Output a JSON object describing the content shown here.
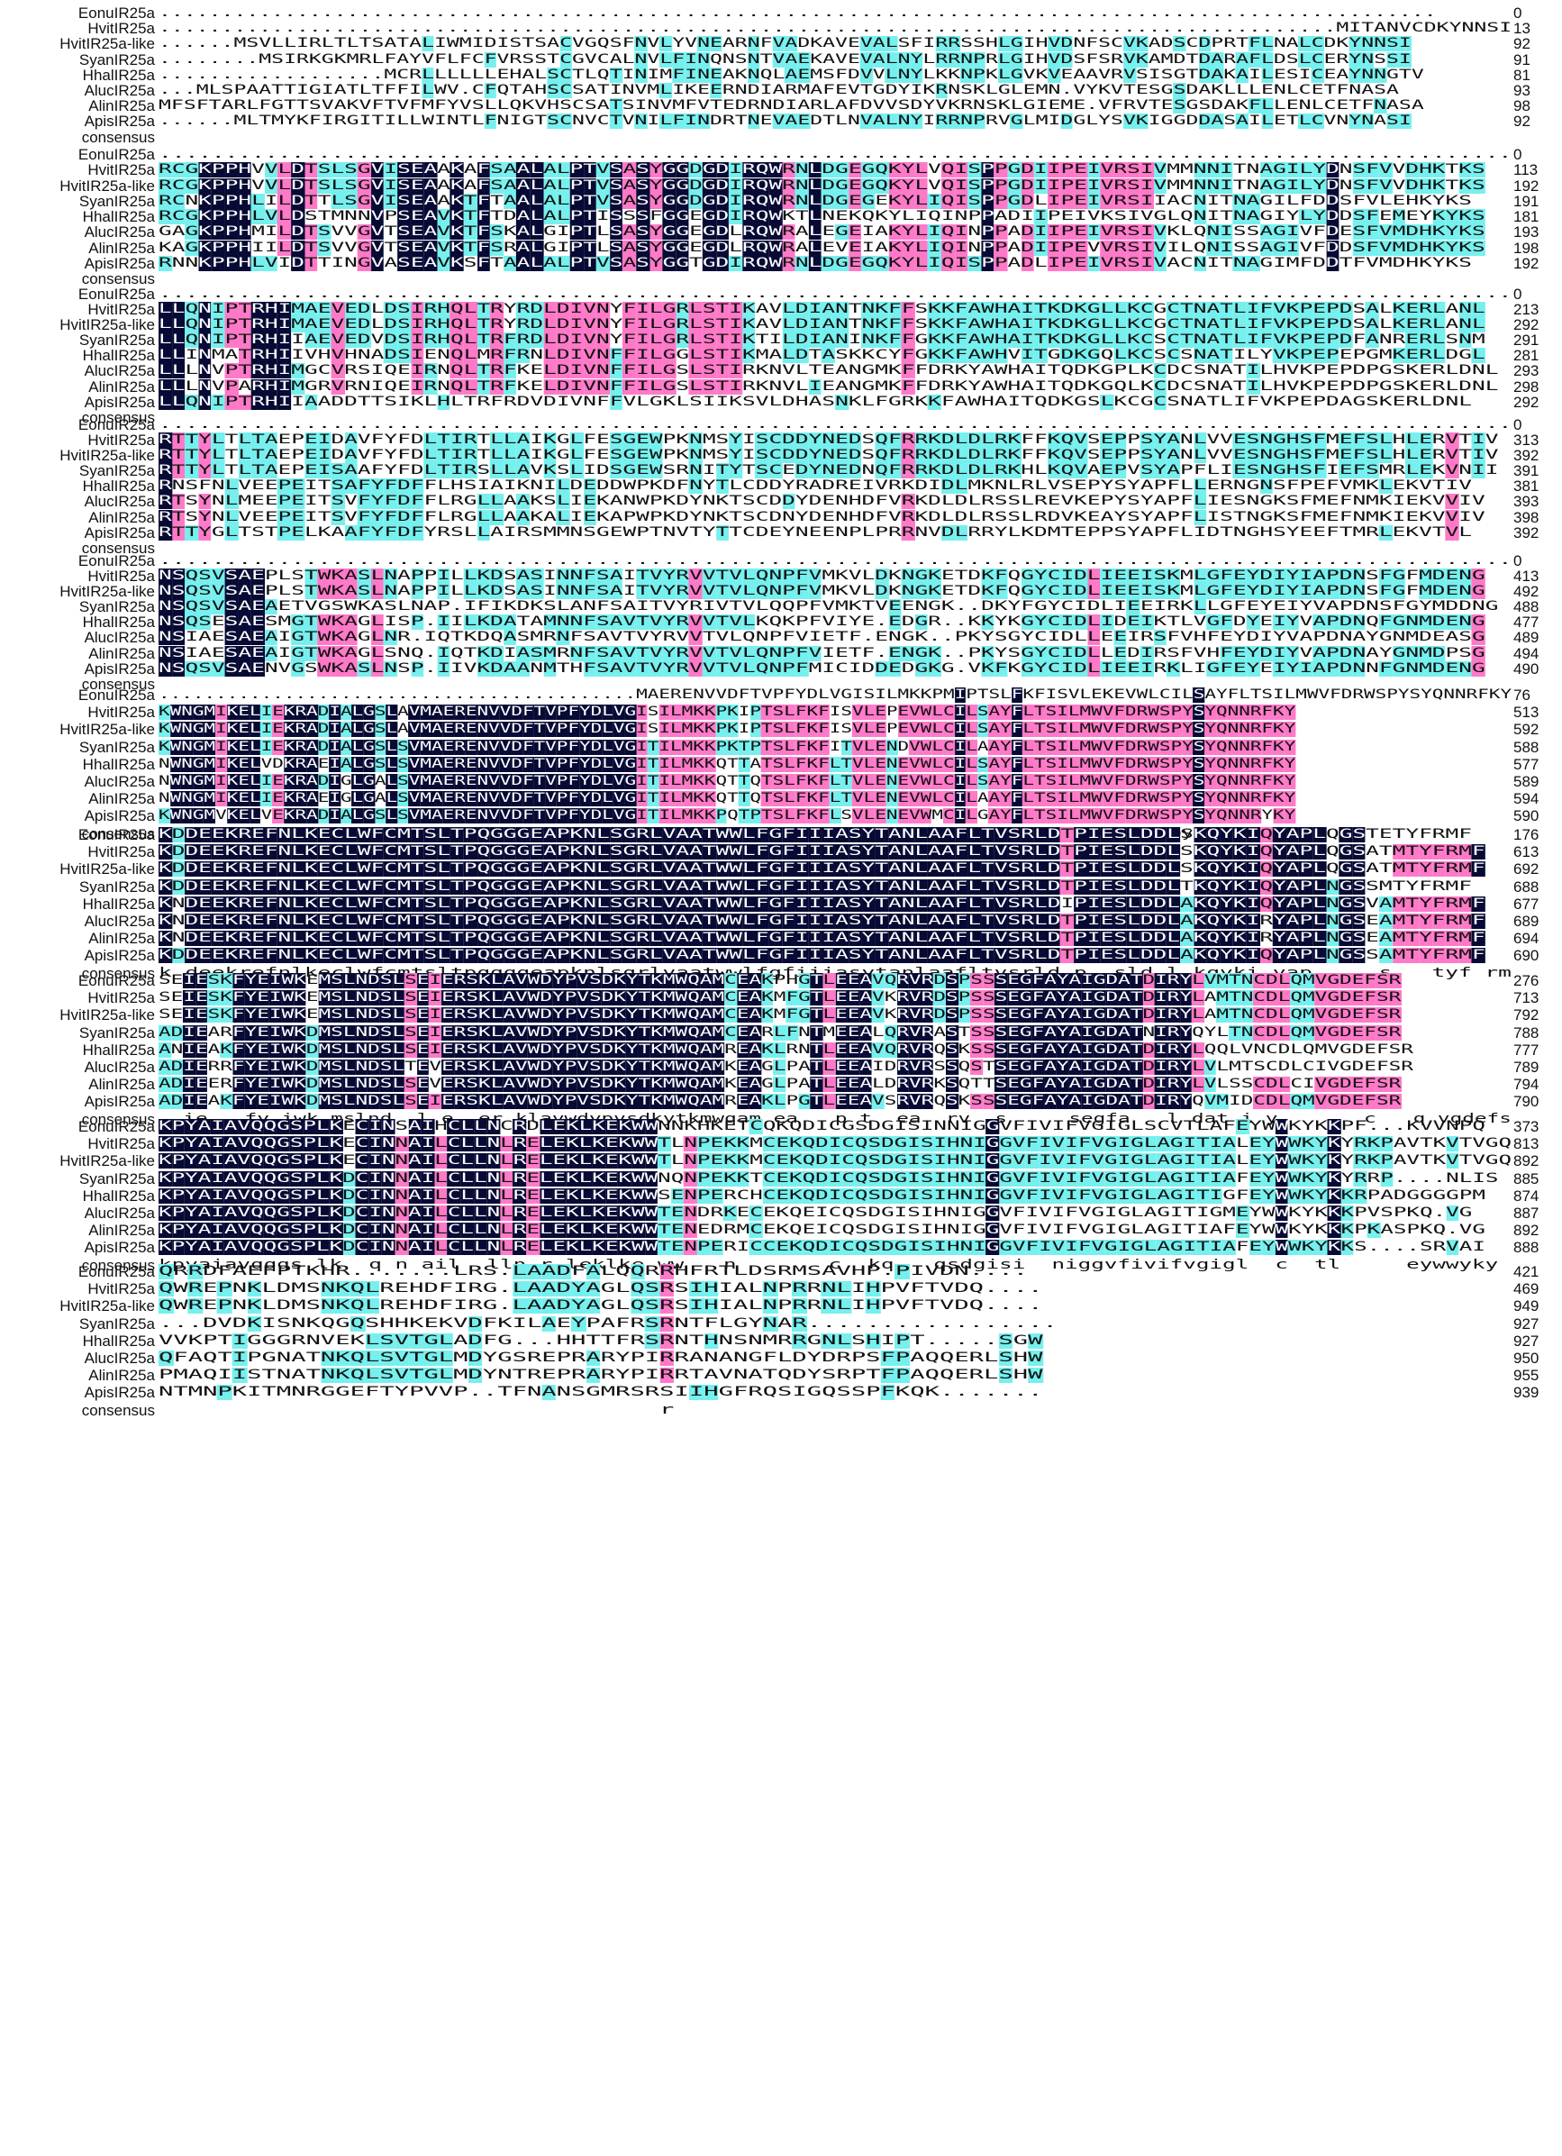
{
  "figure_title": "",
  "colors": {
    "none": "#ffffff",
    "low_similarity_cyan": "#76f0ee",
    "medium_similarity_pink": "#ff79c8",
    "identical_black": "#070a34"
  },
  "blocks": [
    {
      "rows": [
        {
          "name": "EonuIR25a",
          "seq": "......................................................................................................",
          "end": "0"
        },
        {
          "name": "HvitIR25a",
          "seq": "..............................................................................................MITANVCDKYNNSI",
          "end": "13"
        },
        {
          "name": "HvitIR25a-like",
          "seq": "......MSVLLIRLTLTSATALIWMIDISTSACVGQSFNVLYVNEARNFVADKAVEVALSFIRRSSHLGIHVDNFSCVKADSCDPRTFLNALCDKYNNSI",
          "end": "92"
        },
        {
          "name": "SyanIR25a",
          "seq": "........MSIRKGKMRLFAYVFLFCFVRSSTCGVCALNVLFINQNSNTVAEKAVEVALNYLRRNPRLGIHVDSFSRVKAMDTDARAFLDSLCERYNSSI",
          "end": "91"
        },
        {
          "name": "HhalIR25a",
          "seq": "..................MCRLLLLLLEHALSCTLQTINIMFINEAKNQLAEMSFDVVLNYLKKNPKLGVKVEAAVRVSISGTDAKAILESICEAYNNGTV",
          "end": "81"
        },
        {
          "name": "AlucIR25a",
          "seq": "...MLSPAATTIGIATLTFFILWV.CFQTAHSCSATINVMLIKEERNDIARMAFEVTGDYIKRNSKLGLEMN.VYKVTESGSDAKLLLENLCETFNASA",
          "end": "93"
        },
        {
          "name": "AlinIR25a",
          "seq": "MFSFTARLFGTTSVAKVFTVFMFYVSLLQKVHSCSATSINVMFVTEDRNDIARLAFDVVSDYVKRNSKLGIEME.VFRVTESGSDAKFLLENLCETFNASA",
          "end": "98"
        },
        {
          "name": "ApisIR25a",
          "seq": "......MLTMYKFIRGITILLWINTLFNIGTSCNVCTVNILFINDRTNEVAEDTLNVALNYIRRNPRVGLMIDGLYSVKIGGDDASAILETLCVNYNASI",
          "end": "92"
        },
        {
          "name": "consensus",
          "seq": "",
          "end": ""
        }
      ]
    },
    {
      "rows": [
        {
          "name": "EonuIR25a",
          "seq": "......................................................................................................",
          "end": "0"
        },
        {
          "name": "HvitIR25a",
          "seq": "RCGKPPHVVLDTSLSGVISEAAKAFSAALALPTVSASYGGDGDIRQWRNLDGEGQKYLVQISPPGDIIPEIVRSIVMMNNITNAGILYDNSFVVDHKTKS",
          "end": "113"
        },
        {
          "name": "HvitIR25a-like",
          "seq": "RCGKPPHVVLDTSLSGVISEAAKAFSAALALPTVSASYGGDGDIRQWRNLDGEGQKYLVQISPPGDIIPEIVRSIVMMNNITNAGILYDNSFVVDHKTKS",
          "end": "192"
        },
        {
          "name": "SyanIR25a",
          "seq": "RCNKPPHLILDTTLSGVISEAAKTFTAALALPTVSASYGGDGDIRQWRNLDGEGEKYLIQISPPGDLIPEIVRSIIACNITNAGILFDDSFVLEHKYKS",
          "end": "191"
        },
        {
          "name": "HhalIR25a",
          "seq": "RCGKPPHLVLDSTMNNVPSEAVKTFTDALALPTISSSFGGEGDIRQWKTLNEKQKYLIQINPPADIIPEIVKSIVGLQNITNAGIYLYDDSFEMEYKYKS",
          "end": "181"
        },
        {
          "name": "AlucIR25a",
          "seq": "GAGKPPHMILDTSVVGVTSEAVKTFSKALGIPTLSASYGGEGDLRQWRALEGEIAKYLIQINPPADIIPEIVRSIVKLQNISSAGIVFDESFVMDHKYKS",
          "end": "193"
        },
        {
          "name": "AlinIR25a",
          "seq": "KAGKPPHIILDTSVVGVTSEAVKTFSRALGIPTLSASYGGEGDLRQWRALEVEIAKYLIQINPPADIIPEVVRSIVILQNISSAGIVFDDSFVMDHKYKS",
          "end": "198"
        },
        {
          "name": "ApisIR25a",
          "seq": "RNNKPPHLVIDTTINGVASEAVKSFTAALALPTVSASYGGTGDIRQWRNLDGEGQKYLIQISPPADLIPEIVRSIVACNITNAGIMFDDTFVMDHKYKS",
          "end": "192"
        },
        {
          "name": "consensus",
          "seq": "",
          "end": ""
        }
      ]
    },
    {
      "rows": [
        {
          "name": "EonuIR25a",
          "seq": "......................................................................................................",
          "end": "0"
        },
        {
          "name": "HvitIR25a",
          "seq": "LLQNIPTRHIMAEVEDLDSIRHQLTRYRDLDIVNYFILGRLSTIKAVLDIANTNKFFSKKFAWHAITKDKGLLKCGCTNATLIFVKPEPDSALKERLANL",
          "end": "213"
        },
        {
          "name": "HvitIR25a-like",
          "seq": "LLQNIPTRHIMAEVEDLDSIRHQLTRYRDLDIVNYFILGRLSTIKAVLDIANTNKFFSKKFAWHAITKDKGLLKCGCTNATLIFVKPEPDSALKERLANL",
          "end": "292"
        },
        {
          "name": "SyanIR25a",
          "seq": "LLQNIPTRHIIAEVEDVDSIRHQLTRFRDLDIVNYFILGRLSTIKTILDIANINKFFGKKFAWHAITKDKGLLKCSCTNATLIFVKPEPDFANRERLSNM",
          "end": "291"
        },
        {
          "name": "HhalIR25a",
          "seq": "LLINMATRHIIVHVHNADSIENQLMRFRNLDIVNFFILGGLSTIKMALDTASKKCYFGKKFAWHVITGDKGQLKCSCSNATILYVKPEPEPGMKERLDGL",
          "end": "281"
        },
        {
          "name": "AlucIR25a",
          "seq": "LLLNVPTRHIMGCVRSIQEIRNQLTRFKELDIVNFFILGSLSTIRKNVLTEANGMKFFDRKYAWHAITQDKGPLKCDCSNATILHVKPEPDPGSKERLDNL",
          "end": "293"
        },
        {
          "name": "AlinIR25a",
          "seq": "LLLNVPARHIMGRVRNIQEIRNQLTRFKELDIVNFFILGSLSTIRKNVLIEANGMKFFDRKYAWHAITQDKGQLKCDCSNATILHVKPEPDPGSKERLDNL",
          "end": "298"
        },
        {
          "name": "ApisIR25a",
          "seq": "LLQNIPTRHIIAADDTTSIKLHLTRFRDVDIVNFFVLGKLSIIKSVLDHASNKLFGRKKFAWHAITQDKGSLKCGCSNATLIFVKPEPDAGSKERLDNL",
          "end": "292"
        },
        {
          "name": "consensus",
          "seq": "",
          "end": ""
        }
      ]
    },
    {
      "rows": [
        {
          "name": "EonuIR25a",
          "seq": "......................................................................................................",
          "end": "0"
        },
        {
          "name": "HvitIR25a",
          "seq": "RTTYLTLTAEPEIDAVFYFDLTIRTLLAIKGLFESGEWPKNMSYISCDDYNEDSQFRRKDLDLRKFFKQVSEPPSYANLVVESNGHSFMEFSLHLERVTIV",
          "end": "313"
        },
        {
          "name": "HvitIR25a-like",
          "seq": "RTTYLTLTAEPEIDAVFYFDLTIRTLLAIKGLFESGEWPKNMSYISCDDYNEDSQFRRKDLDLRKFFKQVSEPPSYANLVVESNGHSFMEFSLHLERVTIV",
          "end": "392"
        },
        {
          "name": "SyanIR25a",
          "seq": "RTTYLTLTAEPEISAAFYFDLTIRSLLAVKSLIDSGEWSRNITYTSCEDYNEDNQFRRKDLDLRKHLKQVAEPVSYAPFLIESNGHSFIEFSMRLEKVNII",
          "end": "391"
        },
        {
          "name": "HhalIR25a",
          "seq": "RNSFNLVEEPEITSAFYFDFFLHSIAIKNILDEDDWPKDFNYTLCDDYRADREIVRKDIDLMKNLRLVSEPYSYAPFLLERNGNSFPEFVMKLEKVTIV",
          "end": "381"
        },
        {
          "name": "AlucIR25a",
          "seq": "RTSYNLMEEPEITSVFYFDFFLRGLLAAKSLIEKANWPKDYNKTSCDDYDENHDFVRKDLDLRSSLREVKEPYSYAPFLIESNGKSFMEFNMKIEKVVIV",
          "end": "393"
        },
        {
          "name": "AlinIR25a",
          "seq": "RTSYNLVEEPEITSVFYFDFFLRGLLAAKALIEKAPWPKDYNKTSCDNYDENHDFVRKDLDLRSSLRDVKEAYSYAPFLISTNGKSFMEFNMKIEKVVIV",
          "end": "398"
        },
        {
          "name": "ApisIR25a",
          "seq": "RTTYGLTSTPELKAAFYFDFYRSLLAIRSMMNSGEWPTNVTYTTCDEYNEENPLPRRNVDLRRYLKDMTEPPSYAPFLIDTNGHSYEEFTMRLEKVTVL",
          "end": "392"
        },
        {
          "name": "consensus",
          "seq": "",
          "end": ""
        }
      ]
    },
    {
      "rows": [
        {
          "name": "EonuIR25a",
          "seq": "......................................................................................................",
          "end": "0"
        },
        {
          "name": "HvitIR25a",
          "seq": "NSQSVSAEPLSTWKASLNAPPILLKDSASINNFSAITVYRVVTVLQNPFVMKVLDKNGKETDKFQGYCIDLIEEISKMLGFEYDIYIAPDNSFGFMDENG",
          "end": "413"
        },
        {
          "name": "HvitIR25a-like",
          "seq": "NSQSVSAEPLSTWKASLNAPPILLKDSASINNFSAITVYRVVTVLQNPFVMKVLDKNGKETDKFQGYCIDLIEEISKMLGFEYDIYIAPDNSFGFMDENG",
          "end": "492"
        },
        {
          "name": "SyanIR25a",
          "seq": "NSQSVSAEAETVGSWKASLNAP.IFIKDKSLANFSAITVYRIVTVLQQPFVMKTVEENGK..DKYFGYCIDLIEEIRKLLGFEYEIYVAPDNSFGYMDDNG",
          "end": "488"
        },
        {
          "name": "HhalIR25a",
          "seq": "NSQSESAESMGTWKAGLISP.IILKDATAMNNFSAVTVYRVVTVLKQKPFVIYE.EDGR..KKYKGYCIDLIDEIKTLVGFDYEIYVAPDNQFGNMDENG",
          "end": "477"
        },
        {
          "name": "AlucIR25a",
          "seq": "NSIAESAEAIGTWKAGLNR.IQTKDQASMRNFSAVTVYRVVTVLQNPFVIETF.ENGK..PKYSGYCIDLLEEIRSFVHFEYDIYVAPDNAYGNMDEASG",
          "end": "489"
        },
        {
          "name": "AlinIR25a",
          "seq": "NSIAESAEAIGTWKAGLSNQ.IQTKDIASMRNFSAVTVYRVVTVLQNPFVIETF.ENGK..PKYSGYCIDLLEDIRSFVHFEYDIYVAPDNAYGNMDPSG",
          "end": "494"
        },
        {
          "name": "ApisIR25a",
          "seq": "NSQSVSAENVGSWKASLNSP.IIVKDAANMTHFSAVTVYRVVTVLQNPFMICIDDEDGKG.VKFKGYCIDLIEEIRKLIGFEYEIYIAPDNNFGNMDENG",
          "end": "490"
        },
        {
          "name": "consensus",
          "seq": "",
          "end": ""
        }
      ]
    },
    {
      "rows": [
        {
          "name": "EonuIR25a",
          "seq": "..........................................MAERENVVDFTVPFYDLVGISILMKKPMIPTSLFKFISVLEKEVWLCILSAYFLTSILMWVFDRWSPYSYQNNRFKY",
          "end": "76"
        },
        {
          "name": "HvitIR25a",
          "seq": "KWNGMIKELIEKRADIALGSLAVMAERENVVDFTVPFYDLVGISILMKKPKIPTSLFKFISVLEPEVWLCILSAYFLTSILMWVFDRWSPYSYQNNRFKY",
          "end": "513"
        },
        {
          "name": "HvitIR25a-like",
          "seq": "KWNGMIKELIEKRADIALGSLAVMAERENVVDFTVPFYDLVGISILMKKPKIPTSLFKFISVLEPEVWLCILSAYFLTSILMWVFDRWSPYSYQNNRFKY",
          "end": "592"
        },
        {
          "name": "SyanIR25a",
          "seq": "KWNGMIKELIEKRADIALGSLSVMAERENVVDFTVPFYDLVGITILMKKPKTPTSLFKFITVLENDVWLCILAAYFLTSILMWVFDRWSPYSYQNNRFKY",
          "end": "588"
        },
        {
          "name": "HhalIR25a",
          "seq": "NWNGMIKELVDKRAEIALGSLSVMAERENVVDFTVPFYDLVGITILMKKQTTATSLFKFLTVLENEVWLCILSAYFLTSILMWVFDRWSPYSYQNNRFKY",
          "end": "577"
        },
        {
          "name": "AlucIR25a",
          "seq": "NWNGMIKELIEKRADIGLGALSVMAERENVVDFTVPFYDLVGITILMKKQTTQTSLFKFLTVLENEVWLCILSAYFLTSILMWVFDRWSPYSYQNNRFKY",
          "end": "589"
        },
        {
          "name": "AlinIR25a",
          "seq": "NWNGMIKELIEKRAEIGLGALSVMAERENVVDFTVPFYDLVGITILMKKQTTQTSLFKFLTVLENEVWLCILAAYFLTSILMWVFDRWSPYSYQNNRFKY",
          "end": "594"
        },
        {
          "name": "ApisIR25a",
          "seq": "KWNGMVKELVEKRADIALGSLSVMAERENVVDFTVPFYDLVGITILMKKPQTPTSLFKFLSVLENEVWMCILGAYFLTSILMWVFDRWSPYSYQNNRYKY",
          "end": "590"
        },
        {
          "name": "consensus",
          "seq": "                       maere v dftvp ydlvgi i mkk    tslfkfl vle  vw cil  yf ts lmwvfdrwspysyqnnr ky",
          "end": ""
        }
      ]
    },
    {
      "rows": [
        {
          "name": "EonuIR25a",
          "seq": "KDDEEKREFNLKECLWFCMTSLTPQGGGEAPKNLSGRLVAATWWLFGFIIIASYTANLAAFLTVSRLDTPIESLDDLSKQYKIQYAPLQGSTETYFRMF",
          "end": "176"
        },
        {
          "name": "HvitIR25a",
          "seq": "KDDEEKREFNLKECLWFCMTSLTPQGGGEAPKNLSGRLVAATWWLFGFIIIASYTANLAAFLTVSRLDTPIESLDDLSKQYKIQYAPLQGSATMTYFRMF",
          "end": "613"
        },
        {
          "name": "HvitIR25a-like",
          "seq": "KDDEEKREFNLKECLWFCMTSLTPQGGGEAPKNLSGRLVAATWWLFGFIIIASYTANLAAFLTVSRLDTPIESLDDLSKQYKIQYAPLQGSATMTYFRMF",
          "end": "692"
        },
        {
          "name": "SyanIR25a",
          "seq": "KDDEEKREFNLKECLWFCMTSLTPQGGGEAPKNLSGRLVAATWWLFGFIIIASYTANLAAFLTVSRLDTPIESLDDLTKQYKIQYAPLNGSSMTYFRMF",
          "end": "688"
        },
        {
          "name": "HhalIR25a",
          "seq": "KNDEEKREFNLKECLWFCMTSLTPQGGGEAPKNLSGRLVAATWWLFGFIIIASYTANLAAFLTVSRLDIPIESLDDLAKQYKIQYAPLNGSVAMTYFRMF",
          "end": "677"
        },
        {
          "name": "AlucIR25a",
          "seq": "KNDEEKREFNLKECLWFCMTSLTPQGGGEAPKNLSGRLVAATWWLFGFIIIASYTANLAAFLTVSRLDTPIESLDDLAKQYKIRYAPLNGSEAMTYFRMF",
          "end": "689"
        },
        {
          "name": "AlinIR25a",
          "seq": "KNDEEKREFNLKECLWFCMTSLTPQGGGEAPKNLSGRLVAATWWLFGFIIIASYTANLAAFLTVSRLDTPIESLDDLAKQYKIRYAPLNGSEAMTYFRMF",
          "end": "694"
        },
        {
          "name": "ApisIR25a",
          "seq": "KDDEEKREFNLKECLWFCMTSLTPQGGGEAPKNLSGRLVAATWWLFGFIIIASYTANLAAFLTVSRLDTPIESLDDLAKQYKIQYAPLNGSSAMTYFRMF",
          "end": "690"
        },
        {
          "name": "consensus",
          "seq": "k deekrefnlkeclwfcmtsltpqgggeapknlsgrlvaatwwlfgfiiiasytanlaafltvsrld p  sld l kqyki yap     s   tyf rm",
          "end": ""
        }
      ]
    },
    {
      "rows": [
        {
          "name": "EonuIR25a",
          "seq": "SEIESKFYEIWKEMSLNDSLSEIERSKLAVWDYPVSDKYTKMWQAMCEAKPHGTLEEAVQRVRDSPSSSEGFAYAIGDATDIRYLVMTNCDLQMVGDEFSR",
          "end": "276"
        },
        {
          "name": "HvitIR25a",
          "seq": "SEIESKFYEIWKEMSLNDSLSEIERSKLAVWDYPVSDKYTKMWQAMCEAKMFGTLEEAVKRVRDSPSSSEGFAYAIGDATDIRYLAMTNCDLQMVGDEFSR",
          "end": "713"
        },
        {
          "name": "HvitIR25a-like",
          "seq": "SEIESKFYEIWKEMSLNDSLSEIERSKLAVWDYPVSDKYTKMWQAMCEAKMFGTLEEAVKRVRDSPSSSEGFAYAIGDATDIRYLAMTNCDLQMVGDEFSR",
          "end": "792"
        },
        {
          "name": "SyanIR25a",
          "seq": "ADIEARFYEIWKDMSLNDSLSEIERSKLAVWDYPVSDKYTKMWQAMCEARLFNTMEEALQRVRASTSSSEGFAYAIGDATNIRYQYLTNCDLQMVGDEFSR",
          "end": "788"
        },
        {
          "name": "HhalIR25a",
          "seq": "ANIEAKFYEIWKDMSLNDSLSEIERSKLAVWDYPVSDKYTKMWQAMREAKLRNTLEEAVQRVRQSKSSSEGFAYAIGDATDIRYLQQLVNCDLQMVGDEFSR",
          "end": "777"
        },
        {
          "name": "AlucIR25a",
          "seq": "ADIERRFYEIWKDMSLNDSLTEVERSKLAVWDYPVSDKYTKMWQAMKEAGLPATLEEAIDRVRSSQSTSEGFAYAIGDATDIRYLVLMTSCDLCIVGDEFSR",
          "end": "789"
        },
        {
          "name": "AlinIR25a",
          "seq": "ADIEERFYEIWKDMSLNDSLSEVERSKLAVWDYPVSDKYTKMWQAMKEAGLPATLEEALDRVRKSQTTSEGFAYAIGDATDIRYLVLSSCDLCIVGDEFSR",
          "end": "794"
        },
        {
          "name": "ApisIR25a",
          "seq": "ADIEAKFYEIWKDMSLNDSLSEIERSKLAVWDYPVSDKYTKMWQAMREAKLPGTLEEAVSRVRQSKSSSEGFAYAIGDATDIRYQVMIDCDLQMVGDEFSR",
          "end": "790"
        },
        {
          "name": "consensus",
          "seq": "  ie   fy iwk mslnd  l e  er klavwdypvsdkytkmwqam ea   p t  ea  rv  s     segfa   l dat i y       c   q vgdefs",
          "end": ""
        }
      ]
    },
    {
      "rows": [
        {
          "name": "EonuIR25a",
          "seq": "KPYAIAVQQGSPLKECINSAIHCLLNCRDLEKLKEKWWNNKHKETCQKQDICGSDGISINNIGGVFIVIFVGIGLSCVTLAFEYWWKYKKPF...KVVNPQ",
          "end": "373"
        },
        {
          "name": "HvitIR25a",
          "seq": "KPYAIAVQQGSPLKECINNAILCLLNLRELEKLKEKWWTLNPEKKMCEKQDICQSDGISIHNIGGVFIVIFVGIGLAGITIALEYWWKYKYRKPAVTKVTVGQ",
          "end": "813"
        },
        {
          "name": "HvitIR25a-like",
          "seq": "KPYAIAVQQGSPLKECINNAILCLLNLRELEKLKEKWWTLNPEKKMCEKQDICQSDGISIHNIGGVFIVIFVGIGLAGITIALEYWWKYKYRKPAVTKVTVGQ",
          "end": "892"
        },
        {
          "name": "SyanIR25a",
          "seq": "KPYAIAVQQGSPLKDCINNAILCLLNLRELEKLKEKWWNQNPEKKTCEKQDICQSDGISIHNIGGVFIVIFVGIGLAGITIAFEYWWKYKYRRP....NLIS",
          "end": "885"
        },
        {
          "name": "HhalIR25a",
          "seq": "KPYAIAVQQGSPLKDCINNAILCLLNLRELEKLKEKWWSENPERCHCEKQDICQSDGISIHNIGGVFIVIFVGIGLAGITIGFEYWWKYKKRPADGGGGPM",
          "end": "874"
        },
        {
          "name": "AlucIR25a",
          "seq": "KPYAIAVQQGSPLKDCINNAILCLLNLRELEKLKEKWWTENDRKECEKQEICQSDGISIHNIGGVFIVIFVGIGLAGITIGMEYWWKYKKKPVSPKQ.VG",
          "end": "887"
        },
        {
          "name": "AlinIR25a",
          "seq": "KPYAIAVQQGSPLKDCINNAILCLLNLRELEKLKEKWWTENEDRMCEKQEICQSDGISIHNIGGVFIVIFVGIGLAGITIAFEYWWKYKKKPKASPKQ.VG",
          "end": "892"
        },
        {
          "name": "ApisIR25a",
          "seq": "KPYAIAVQQGSPLKDCINNAILCLLNLRELEKLKEKWWTENPERICCEKQDICQSDGISIHNIGGVFIVIFVGIGLAGITIAFEYWWKYKKS....SRVAI",
          "end": "888"
        },
        {
          "name": "consensus",
          "seq": "kpyaiavqqgs lk  q n ail  lln r leklke ww   n       c  kq   qsdgisi  niggvfivifvgigl  c  tl     eywwyky",
          "end": ""
        }
      ]
    },
    {
      "rows": [
        {
          "name": "EonuIR25a",
          "seq": "QRRDFAEFPTKHR.......LRS.LAADFALQQRRHFRTLDSRMSAVHP.PIVDN....",
          "end": "421"
        },
        {
          "name": "HvitIR25a",
          "seq": "QWREPNKLDMSNKQLREHDFIRG.LAADYAGLQSRSIHIALNPRRNLIHPVFTVDQ....",
          "end": "469"
        },
        {
          "name": "HvitIR25a-like",
          "seq": "QWREPNKLDMSNKQLREHDFIRG.LAADYAGLQSRSIHIALNPRRNLIHPVFTVDQ....",
          "end": "949"
        },
        {
          "name": "SyanIR25a",
          "seq": "...DVDKISNKQGQSHHKEKVDFKILAEYPAFRSRNTFLGYNAR.................",
          "end": "927"
        },
        {
          "name": "HhalIR25a",
          "seq": "VVKPTIGGGRNVEKLSVTGLADFG...HHTTFRSRNTHNSNMRRGNLSHIPT.....SGW",
          "end": "927"
        },
        {
          "name": "AlucIR25a",
          "seq": "QFAQTIPGNATNKQLSVTGLMDYGSREPRARYPIRRANANGFLDYDRPSFPAQQERLSHW",
          "end": "950"
        },
        {
          "name": "AlinIR25a",
          "seq": "PMAQIISTNATNKQLSVTGLMDYNTREPRARYPIRRTAVNATQDYSRPTFPAQQERLSHW",
          "end": "955"
        },
        {
          "name": "ApisIR25a",
          "seq": "NTMNPKITMNRGGEFTYPVVP..TFNANSGMRSRSIIHGFRQSIGQSSPFKQK.......",
          "end": "939"
        },
        {
          "name": "consensus",
          "seq": "                                  r",
          "end": ""
        }
      ]
    }
  ]
}
